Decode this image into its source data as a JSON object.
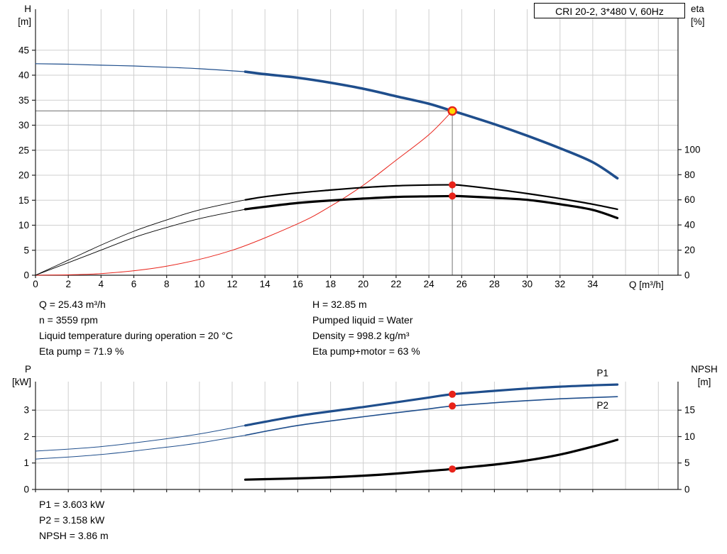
{
  "colors": {
    "accent_blue": "#1f4e8c",
    "curve_black": "#000000",
    "highlight_red": "#e8231a",
    "duty_yellow": "#ffd800",
    "grid": "#cfcfcf",
    "crosshair": "#8a8a8a",
    "axis": "#222222"
  },
  "info": {
    "top_left": [
      "Q = 25.43 m³/h",
      "n = 3559 rpm",
      "Liquid temperature during operation = 20 °C",
      "Eta pump = 71.9 %"
    ],
    "top_right": [
      "H = 32.85 m",
      "Pumped liquid = Water",
      "Density = 998.2 kg/m³",
      "Eta pump+motor = 63 %"
    ],
    "bottom": [
      "P1 = 3.603 kW",
      "P2 = 3.158 kW",
      "NPSH = 3.86 m"
    ]
  },
  "chart_data": [
    {
      "type": "line",
      "title": "CRI 20-2, 3*480 V, 60Hz",
      "xlabel": "Q [m³/h]",
      "ylabel_left": [
        "H",
        "[m]"
      ],
      "ylabel_right": [
        "eta",
        "[%]"
      ],
      "axes": {
        "x": {
          "min": 0,
          "max": 39.2,
          "ticks": [
            0,
            2,
            4,
            6,
            8,
            10,
            12,
            14,
            16,
            18,
            20,
            22,
            24,
            26,
            28,
            30,
            32,
            34
          ],
          "grid_extra": [
            36,
            38
          ],
          "show_labels": true
        },
        "y_left": {
          "min": 0,
          "max": 53.2,
          "ticks": [
            0,
            5,
            10,
            15,
            20,
            25,
            30,
            35,
            40,
            45
          ]
        },
        "y_right": {
          "factor": 0.2513,
          "ticks": [
            0,
            20,
            40,
            60,
            80,
            100
          ]
        }
      },
      "crosshair": {
        "q": 25.43,
        "h": 32.85
      },
      "series": [
        {
          "name": "pump-curve-thin",
          "color": "#1f4e8c",
          "width": 1.2,
          "axis": "left",
          "points": [
            [
              0,
              42.3
            ],
            [
              2,
              42.2
            ],
            [
              4,
              42.0
            ],
            [
              6,
              41.85
            ],
            [
              8,
              41.6
            ],
            [
              10,
              41.3
            ],
            [
              12.8,
              40.7
            ]
          ]
        },
        {
          "name": "pump-curve",
          "color": "#1f4e8c",
          "width": 3.6,
          "axis": "left",
          "points": [
            [
              12.8,
              40.7
            ],
            [
              14,
              40.2
            ],
            [
              16,
              39.5
            ],
            [
              18,
              38.5
            ],
            [
              20,
              37.3
            ],
            [
              22,
              35.8
            ],
            [
              24,
              34.3
            ],
            [
              25.43,
              32.85
            ],
            [
              26,
              32.3
            ],
            [
              28,
              30.2
            ],
            [
              30,
              27.9
            ],
            [
              32,
              25.4
            ],
            [
              34,
              22.6
            ],
            [
              35.5,
              19.4
            ]
          ]
        },
        {
          "name": "system-curve",
          "color": "#e8231a",
          "width": 1,
          "axis": "left",
          "points": [
            [
              0,
              0
            ],
            [
              4,
              0.32
            ],
            [
              8,
              1.8
            ],
            [
              12,
              5.0
            ],
            [
              16,
              10.3
            ],
            [
              18,
              13.8
            ],
            [
              20,
              18.0
            ],
            [
              22,
              23.0
            ],
            [
              24,
              28.1
            ],
            [
              25.43,
              32.85
            ]
          ]
        },
        {
          "name": "eta-pump-curve-thin",
          "color": "#000000",
          "width": 0.9,
          "axis": "right",
          "points": [
            [
              0,
              0
            ],
            [
              2,
              12
            ],
            [
              4,
              24
            ],
            [
              6,
              35
            ],
            [
              8,
              44
            ],
            [
              10,
              52
            ],
            [
              12.8,
              60
            ]
          ]
        },
        {
          "name": "eta-pump-curve",
          "color": "#000000",
          "width": 2.2,
          "axis": "right",
          "points": [
            [
              12.8,
              60
            ],
            [
              14,
              62.5
            ],
            [
              16,
              65.5
            ],
            [
              18,
              67.8
            ],
            [
              20,
              69.8
            ],
            [
              22,
              71.2
            ],
            [
              24,
              71.8
            ],
            [
              25.43,
              71.9
            ],
            [
              26,
              71.5
            ],
            [
              28,
              68.5
            ],
            [
              30,
              65
            ],
            [
              32,
              61
            ],
            [
              34,
              56.5
            ],
            [
              35.5,
              52.5
            ]
          ]
        },
        {
          "name": "eta-pump-motor-curve-thin",
          "color": "#000000",
          "width": 0.9,
          "axis": "right",
          "points": [
            [
              0,
              0
            ],
            [
              2,
              10
            ],
            [
              4,
              20
            ],
            [
              6,
              30
            ],
            [
              8,
              38
            ],
            [
              10,
              45
            ],
            [
              12.8,
              52.5
            ]
          ]
        },
        {
          "name": "eta-pump-motor-curve",
          "color": "#000000",
          "width": 3.2,
          "axis": "right",
          "points": [
            [
              12.8,
              52.5
            ],
            [
              14,
              54.5
            ],
            [
              16,
              57.5
            ],
            [
              18,
              59.5
            ],
            [
              20,
              61
            ],
            [
              22,
              62.3
            ],
            [
              24,
              62.8
            ],
            [
              25.43,
              63
            ],
            [
              26,
              62.9
            ],
            [
              28,
              61.6
            ],
            [
              30,
              60
            ],
            [
              32,
              56.5
            ],
            [
              34,
              52
            ],
            [
              35.5,
              45.5
            ]
          ]
        }
      ],
      "markers": [
        {
          "name": "duty-point",
          "q": 25.43,
          "v": 32.85,
          "axis": "left",
          "fill": "#ffd800",
          "stroke": "#e8231a",
          "stroke_width": 2.4,
          "r": 5.5,
          "interactable": true
        },
        {
          "name": "eta-pump-point",
          "q": 25.43,
          "v": 71.9,
          "axis": "right",
          "fill": "#e8231a",
          "r": 5
        },
        {
          "name": "eta-pump-motor-point",
          "q": 25.43,
          "v": 63,
          "axis": "right",
          "fill": "#e8231a",
          "r": 5
        }
      ],
      "annotations": []
    },
    {
      "type": "line",
      "title": "",
      "xlabel": "",
      "ylabel_left": [
        "P",
        "[kW]"
      ],
      "ylabel_right": [
        "NPSH",
        "[m]"
      ],
      "axes": {
        "x": {
          "min": 0,
          "max": 39.2,
          "ticks": [
            0,
            2,
            4,
            6,
            8,
            10,
            12,
            14,
            16,
            18,
            20,
            22,
            24,
            26,
            28,
            30,
            32,
            34
          ],
          "grid_extra": [
            36,
            38
          ],
          "show_labels": false
        },
        "y_left": {
          "min": 0,
          "max": 4.08,
          "ticks": [
            0,
            1,
            2,
            3
          ]
        },
        "y_right": {
          "factor": 0.2,
          "ticks": [
            0,
            5,
            10,
            15
          ]
        }
      },
      "crosshair": null,
      "series": [
        {
          "name": "p1-curve-thin",
          "color": "#1f4e8c",
          "width": 1,
          "axis": "left",
          "points": [
            [
              0,
              1.45
            ],
            [
              4,
              1.62
            ],
            [
              8,
              1.92
            ],
            [
              10,
              2.1
            ],
            [
              12.8,
              2.42
            ]
          ]
        },
        {
          "name": "p1-curve",
          "color": "#1f4e8c",
          "width": 3.2,
          "axis": "left",
          "points": [
            [
              12.8,
              2.42
            ],
            [
              16,
              2.78
            ],
            [
              20,
              3.12
            ],
            [
              24,
              3.48
            ],
            [
              25.43,
              3.603
            ],
            [
              28,
              3.73
            ],
            [
              30,
              3.82
            ],
            [
              32,
              3.89
            ],
            [
              34,
              3.94
            ],
            [
              35.5,
              3.97
            ]
          ]
        },
        {
          "name": "p2-curve-thin",
          "color": "#1f4e8c",
          "width": 1,
          "axis": "left",
          "points": [
            [
              0,
              1.15
            ],
            [
              4,
              1.32
            ],
            [
              8,
              1.6
            ],
            [
              10,
              1.76
            ],
            [
              12.8,
              2.05
            ]
          ]
        },
        {
          "name": "p2-curve",
          "color": "#1f4e8c",
          "width": 1.6,
          "axis": "left",
          "points": [
            [
              12.8,
              2.05
            ],
            [
              16,
              2.42
            ],
            [
              20,
              2.75
            ],
            [
              24,
              3.05
            ],
            [
              25.43,
              3.158
            ],
            [
              28,
              3.28
            ],
            [
              30,
              3.36
            ],
            [
              32,
              3.43
            ],
            [
              34,
              3.48
            ],
            [
              35.5,
              3.51
            ]
          ]
        },
        {
          "name": "npsh-curve",
          "color": "#000000",
          "width": 3.2,
          "axis": "right",
          "points": [
            [
              12.8,
              1.85
            ],
            [
              14,
              1.95
            ],
            [
              16,
              2.1
            ],
            [
              18,
              2.3
            ],
            [
              20,
              2.6
            ],
            [
              22,
              3.0
            ],
            [
              24,
              3.5
            ],
            [
              25.43,
              3.86
            ],
            [
              26,
              4.1
            ],
            [
              28,
              4.7
            ],
            [
              30,
              5.5
            ],
            [
              32,
              6.6
            ],
            [
              34,
              8.1
            ],
            [
              35.5,
              9.4
            ]
          ]
        }
      ],
      "markers": [
        {
          "name": "p1-point",
          "q": 25.43,
          "v": 3.603,
          "axis": "left",
          "fill": "#e8231a",
          "r": 5
        },
        {
          "name": "p2-point",
          "q": 25.43,
          "v": 3.158,
          "axis": "left",
          "fill": "#e8231a",
          "r": 5
        },
        {
          "name": "npsh-point",
          "q": 25.43,
          "v": 3.86,
          "axis": "right",
          "fill": "#e8231a",
          "r": 5
        }
      ],
      "annotations": [
        {
          "text": "P1",
          "x": 34.6,
          "y": 4.28,
          "color": "#1f4e8c"
        },
        {
          "text": "P2",
          "x": 34.6,
          "y": 3.06,
          "color": "#1f4e8c"
        }
      ]
    }
  ]
}
